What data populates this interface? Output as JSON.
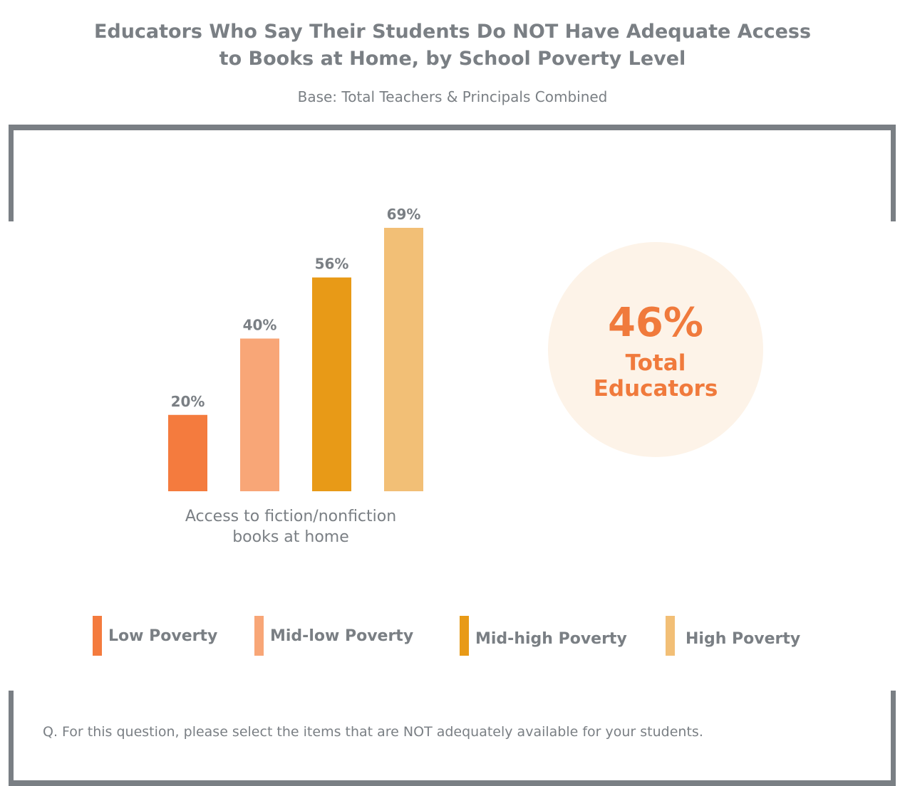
{
  "header": {
    "title_line1": "Educators Who Say Their Students Do NOT Have Adequate Access",
    "title_line2": "to Books at Home, by School Poverty Level",
    "subtitle": "Base: Total Teachers & Principals Combined"
  },
  "chart_data": {
    "type": "bar",
    "categories": [
      "Access to fiction/nonfiction books at home"
    ],
    "series": [
      {
        "name": "Low Poverty",
        "values": [
          20
        ],
        "color": "#f47b3e",
        "label": "20%"
      },
      {
        "name": "Mid-low Poverty",
        "values": [
          40
        ],
        "color": "#f8a677",
        "label": "40%"
      },
      {
        "name": "Mid-high Poverty",
        "values": [
          56
        ],
        "color": "#e89a17",
        "label": "56%"
      },
      {
        "name": "High Poverty",
        "values": [
          69
        ],
        "color": "#f2bf76",
        "label": "69%"
      }
    ],
    "xlabel_line1": "Access to fiction/nonfiction",
    "xlabel_line2": "books at home",
    "unit": "%",
    "ylim": [
      0,
      69
    ],
    "grid": false,
    "legend": "bottom"
  },
  "total": {
    "value": "46%",
    "label_line1": "Total",
    "label_line2": "Educators",
    "color": "#f07a3c"
  },
  "footer": {
    "question": "Q. For this question, please select the items that are NOT adequately available for your students."
  }
}
